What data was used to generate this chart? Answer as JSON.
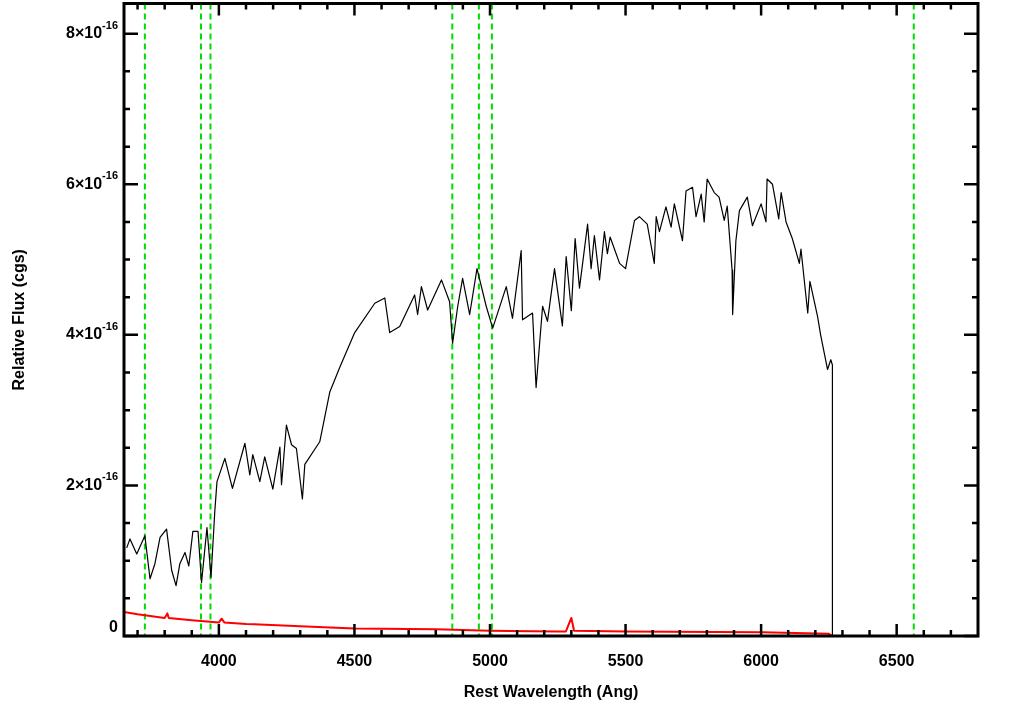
{
  "chart_data": {
    "type": "line",
    "xlabel": "Rest Wavelength (Ang)",
    "ylabel": "Relative Flux (cgs)",
    "marker": "none",
    "line_style": "solid",
    "xlim": [
      3650,
      6800
    ],
    "ylim": [
      0,
      8.4e-16
    ],
    "xticks": [
      {
        "value": 3700,
        "label": null
      },
      {
        "value": 3800,
        "label": null
      },
      {
        "value": 3900,
        "label": null
      },
      4000,
      {
        "value": 4100,
        "label": null
      },
      {
        "value": 4200,
        "label": null
      },
      {
        "value": 4300,
        "label": null
      },
      {
        "value": 4400,
        "label": null
      },
      4500,
      {
        "value": 4600,
        "label": null
      },
      {
        "value": 4700,
        "label": null
      },
      {
        "value": 4800,
        "label": null
      },
      {
        "value": 4900,
        "label": null
      },
      5000,
      {
        "value": 5100,
        "label": null
      },
      {
        "value": 5200,
        "label": null
      },
      {
        "value": 5300,
        "label": null
      },
      {
        "value": 5400,
        "label": null
      },
      5500,
      {
        "value": 5600,
        "label": null
      },
      {
        "value": 5700,
        "label": null
      },
      {
        "value": 5800,
        "label": null
      },
      {
        "value": 5900,
        "label": null
      },
      6000,
      {
        "value": 6100,
        "label": null
      },
      {
        "value": 6200,
        "label": null
      },
      {
        "value": 6300,
        "label": null
      },
      {
        "value": 6400,
        "label": null
      },
      6500,
      {
        "value": 6600,
        "label": null
      },
      {
        "value": 6700,
        "label": null
      }
    ],
    "yticks": [
      0,
      {
        "value": 5e-17,
        "label": null
      },
      {
        "value": 1e-16,
        "label": null
      },
      {
        "value": 1.5e-16,
        "label": null
      },
      {
        "value": 2e-16,
        "label": "2×10$^{-16}$"
      },
      {
        "value": 2.5e-16,
        "label": null
      },
      {
        "value": 3e-16,
        "label": null
      },
      {
        "value": 3.5e-16,
        "label": null
      },
      {
        "value": 4e-16,
        "label": "4×10$^{-16}$"
      },
      {
        "value": 4.5e-16,
        "label": null
      },
      {
        "value": 5e-16,
        "label": null
      },
      {
        "value": 5.5e-16,
        "label": null
      },
      {
        "value": 6e-16,
        "label": "6×10$^{-16}$"
      },
      {
        "value": 6.5e-16,
        "label": null
      },
      {
        "value": 7e-16,
        "label": null
      },
      {
        "value": 7.5e-16,
        "label": null
      },
      {
        "value": 8e-16,
        "label": "8×10$^{-16}$"
      }
    ],
    "series": [
      {
        "color": "#000000",
        "x": [
          3660,
          3672,
          3697,
          3727,
          3746,
          3764,
          3783,
          3807,
          3826,
          3842,
          3856,
          3875,
          3889,
          3904,
          3923,
          3936,
          3956,
          3971,
          3985,
          3993,
          4022,
          4050,
          4096,
          4114,
          4125,
          4151,
          4169,
          4199,
          4225,
          4231,
          4249,
          4268,
          4286,
          4308,
          4317,
          4372,
          4409,
          4446,
          4501,
          4575,
          4612,
          4630,
          4667,
          4722,
          4733,
          4747,
          4770,
          4821,
          4851,
          4862,
          4881,
          4899,
          4925,
          4952,
          4986,
          5010,
          5060,
          5083,
          5115,
          5120,
          5157,
          5170,
          5194,
          5212,
          5238,
          5267,
          5281,
          5300,
          5314,
          5330,
          5360,
          5373,
          5385,
          5404,
          5422,
          5433,
          5443,
          5478,
          5500,
          5533,
          5551,
          5580,
          5606,
          5613,
          5625,
          5649,
          5668,
          5680,
          5710,
          5723,
          5747,
          5760,
          5779,
          5790,
          5801,
          5827,
          5845,
          5864,
          5875,
          5893,
          5895,
          5907,
          5920,
          5949,
          5968,
          6000,
          6018,
          6022,
          6042,
          6065,
          6074,
          6092,
          6115,
          6141,
          6147,
          6172,
          6180,
          6208,
          6220,
          6245,
          6257,
          6263,
          6263,
          6800
        ],
        "values": [
          1.17e-16,
          1.29e-16,
          1.09e-16,
          1.33e-16,
          7.6e-17,
          9.6e-17,
          1.31e-16,
          1.42e-16,
          8.7e-17,
          6.7e-17,
          9.6e-17,
          1.11e-16,
          9.3e-17,
          1.39e-16,
          1.39e-16,
          7.1e-17,
          1.44e-16,
          7.8e-17,
          1.66e-16,
          2.05e-16,
          2.36e-16,
          1.96e-16,
          2.56e-16,
          2.14e-16,
          2.41e-16,
          2.05e-16,
          2.38e-16,
          1.95e-16,
          2.51e-16,
          2.01e-16,
          2.8e-16,
          2.54e-16,
          2.49e-16,
          1.82e-16,
          2.28e-16,
          2.58e-16,
          3.24e-16,
          3.57e-16,
          4.03e-16,
          4.42e-16,
          4.49e-16,
          4.03e-16,
          4.11e-16,
          4.53e-16,
          4.27e-16,
          4.64e-16,
          4.33e-16,
          4.73e-16,
          4.44e-16,
          3.89e-16,
          4.38e-16,
          4.75e-16,
          4.27e-16,
          4.88e-16,
          4.38e-16,
          4.09e-16,
          4.64e-16,
          4.22e-16,
          5.12e-16,
          4.2e-16,
          4.29e-16,
          3.3e-16,
          4.38e-16,
          4.18e-16,
          4.88e-16,
          4.12e-16,
          5.04e-16,
          4.32e-16,
          5.28e-16,
          4.62e-16,
          5.47e-16,
          4.88e-16,
          5.32e-16,
          4.73e-16,
          5.37e-16,
          5.08e-16,
          5.3e-16,
          4.95e-16,
          4.88e-16,
          5.52e-16,
          5.57e-16,
          5.47e-16,
          4.95e-16,
          5.57e-16,
          5.37e-16,
          5.7e-16,
          5.43e-16,
          5.74e-16,
          5.25e-16,
          5.91e-16,
          5.96e-16,
          5.57e-16,
          5.87e-16,
          5.5e-16,
          6.07e-16,
          5.89e-16,
          5.83e-16,
          5.52e-16,
          5.71e-16,
          4.86e-16,
          4.27e-16,
          5.25e-16,
          5.65e-16,
          5.83e-16,
          5.45e-16,
          5.74e-16,
          5.5e-16,
          6.07e-16,
          6e-16,
          5.54e-16,
          5.89e-16,
          5.5e-16,
          5.28e-16,
          4.95e-16,
          5.14e-16,
          4.29e-16,
          4.71e-16,
          4.25e-16,
          3.99e-16,
          3.54e-16,
          3.67e-16,
          3.6e-16,
          0,
          0
        ]
      },
      {
        "color": "#ff0000",
        "x": [
          3650,
          3700,
          3800,
          3810,
          3815,
          3900,
          4000,
          4010,
          4020,
          4100,
          4300,
          4500,
          4800,
          5000,
          5250,
          5280,
          5300,
          5310,
          5500,
          6000,
          6250,
          6263,
          6800
        ],
        "values": [
          3.2e-17,
          2.9e-17,
          2.4e-17,
          3e-17,
          2.4e-17,
          2.1e-17,
          1.8e-17,
          2.3e-17,
          1.8e-17,
          1.6e-17,
          1.3e-17,
          1e-17,
          9e-18,
          7e-18,
          6e-18,
          6e-18,
          2.4e-17,
          7e-18,
          6e-18,
          5e-18,
          3e-18,
          0,
          0
        ]
      }
    ],
    "ref_lines": [
      {
        "axis": "x",
        "value": 3727,
        "color": "#00dd00",
        "line_style": "dashed"
      },
      {
        "axis": "x",
        "value": 3934,
        "color": "#00dd00",
        "line_style": "dashed"
      },
      {
        "axis": "x",
        "value": 3969,
        "color": "#00dd00",
        "line_style": "dashed"
      },
      {
        "axis": "x",
        "value": 4861,
        "color": "#00dd00",
        "line_style": "dashed"
      },
      {
        "axis": "x",
        "value": 4959,
        "color": "#00dd00",
        "line_style": "dashed"
      },
      {
        "axis": "x",
        "value": 5007,
        "color": "#00dd00",
        "line_style": "dashed"
      },
      {
        "axis": "x",
        "value": 6563,
        "color": "#00dd00",
        "line_style": "dashed"
      }
    ]
  }
}
